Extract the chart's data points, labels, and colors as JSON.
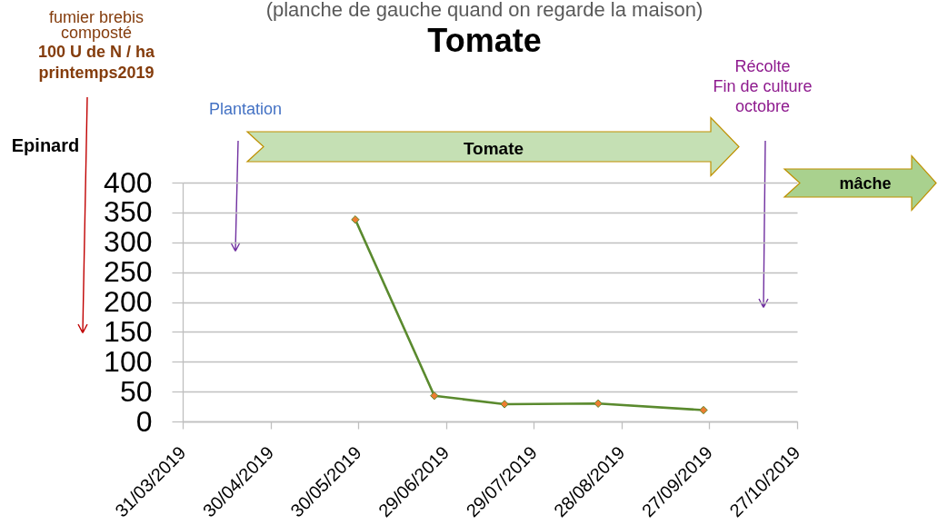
{
  "chart_data": {
    "type": "line",
    "title": "Tomate",
    "subtitle": "(planche de gauche quand on regarde la maison)",
    "x": [
      "2019-05-29",
      "2019-06-25",
      "2019-07-19",
      "2019-08-20",
      "2019-09-25"
    ],
    "series": [
      {
        "color": "#5a8a2e",
        "values": [
          338,
          43,
          29,
          30,
          19
        ]
      }
    ],
    "xlim": [
      "2019-03-31",
      "2019-10-27"
    ],
    "xticks": [
      {
        "value": "2019-03-31",
        "label": "31/03/2019"
      },
      {
        "value": "2019-04-30",
        "label": "30/04/2019"
      },
      {
        "value": "2019-05-30",
        "label": "30/05/2019"
      },
      {
        "value": "2019-06-29",
        "label": "29/06/2019"
      },
      {
        "value": "2019-07-29",
        "label": "29/07/2019"
      },
      {
        "value": "2019-08-28",
        "label": "28/08/2019"
      },
      {
        "value": "2019-09-27",
        "label": "27/09/2019"
      },
      {
        "value": "2019-10-27",
        "label": "27/10/2019"
      }
    ],
    "ylim": [
      0,
      400
    ],
    "yticks": [
      0,
      50,
      100,
      150,
      200,
      250,
      300,
      350,
      400
    ],
    "grid": "y",
    "marker": "diamond",
    "line_style": "solid",
    "annotations": [
      "fumier brebis\ncomposté",
      "100 U de N / ha\nprintemps2019",
      "Plantation",
      "Récolte\nFin de culture\noctobre",
      "Epinard",
      "Tomate",
      "mâche"
    ]
  }
}
